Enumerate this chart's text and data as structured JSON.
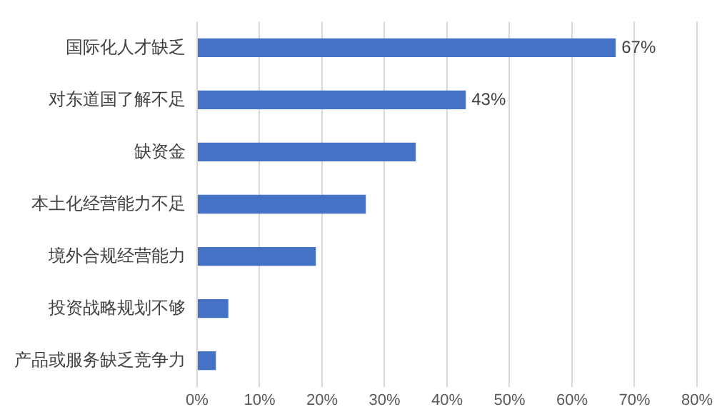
{
  "chart_data": {
    "type": "bar",
    "orientation": "horizontal",
    "categories": [
      "国际化人才缺乏",
      "对东道国了解不足",
      "缺资金",
      "本土化经营能力不足",
      "境外合规经营能力",
      "投资战略规划不够",
      "产品或服务缺乏竞争力"
    ],
    "values": [
      67,
      43,
      35,
      27,
      19,
      5,
      3
    ],
    "value_labels": [
      "67%",
      "43%",
      null,
      null,
      null,
      null,
      null
    ],
    "color": "#4472c4",
    "xlim": [
      0,
      80
    ],
    "xticks": [
      {
        "value": 0,
        "label": "0%"
      },
      {
        "value": 10,
        "label": "10%"
      },
      {
        "value": 20,
        "label": "20%"
      },
      {
        "value": 30,
        "label": "30%"
      },
      {
        "value": 40,
        "label": "40%"
      },
      {
        "value": 50,
        "label": "50%"
      },
      {
        "value": 60,
        "label": "60%"
      },
      {
        "value": 70,
        "label": "70%"
      },
      {
        "value": 80,
        "label": "80%"
      }
    ],
    "grid": "x",
    "legend": false
  }
}
